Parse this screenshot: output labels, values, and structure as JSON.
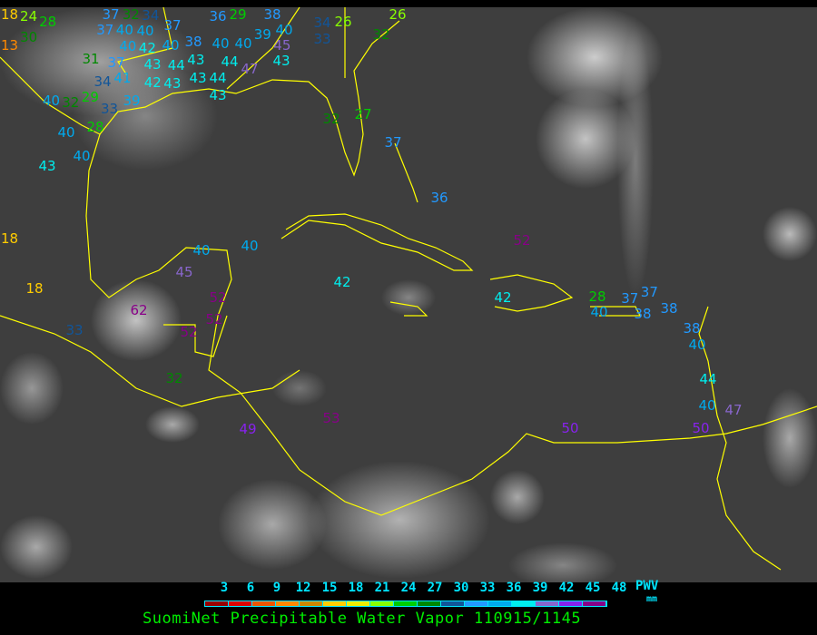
{
  "title": "SuomiNet Precipitable Water Vapor 110915/1145",
  "legend": {
    "unit_label": "PWV",
    "unit": "mm",
    "ticks": [
      "3",
      "6",
      "9",
      "12",
      "15",
      "18",
      "21",
      "24",
      "27",
      "30",
      "33",
      "36",
      "39",
      "42",
      "45",
      "48"
    ],
    "colors": [
      "#990000",
      "#dd0000",
      "#ee5500",
      "#ff8800",
      "#cc8800",
      "#ffcc00",
      "#eeee00",
      "#88ff00",
      "#00cc00",
      "#008800",
      "#115599",
      "#2299ff",
      "#00aaee",
      "#00eeee",
      "#8866cc",
      "#8822ee",
      "#880088"
    ]
  },
  "coastline_color": "#ffff00",
  "stations": [
    "18",
    "24",
    "28",
    "30",
    "13",
    "37",
    "32",
    "34",
    "37",
    "40",
    "40",
    "40",
    "37",
    "36",
    "29",
    "38",
    "39",
    "40",
    "34",
    "26",
    "33",
    "32",
    "26",
    "42",
    "40",
    "38",
    "40",
    "40",
    "45",
    "43",
    "31",
    "37",
    "43",
    "44",
    "43",
    "44",
    "47",
    "34",
    "41",
    "42",
    "43",
    "43",
    "44",
    "43",
    "40",
    "32",
    "29",
    "33",
    "39",
    "40",
    "28",
    "40",
    "43",
    "32",
    "27",
    "37",
    "36",
    "52",
    "18",
    "18",
    "40",
    "40",
    "45",
    "42",
    "62",
    "33",
    "52",
    "52",
    "52",
    "32",
    "49",
    "53",
    "42",
    "28",
    "40",
    "37",
    "37",
    "38",
    "38",
    "38",
    "40",
    "44",
    "40",
    "47",
    "50",
    "50"
  ]
}
